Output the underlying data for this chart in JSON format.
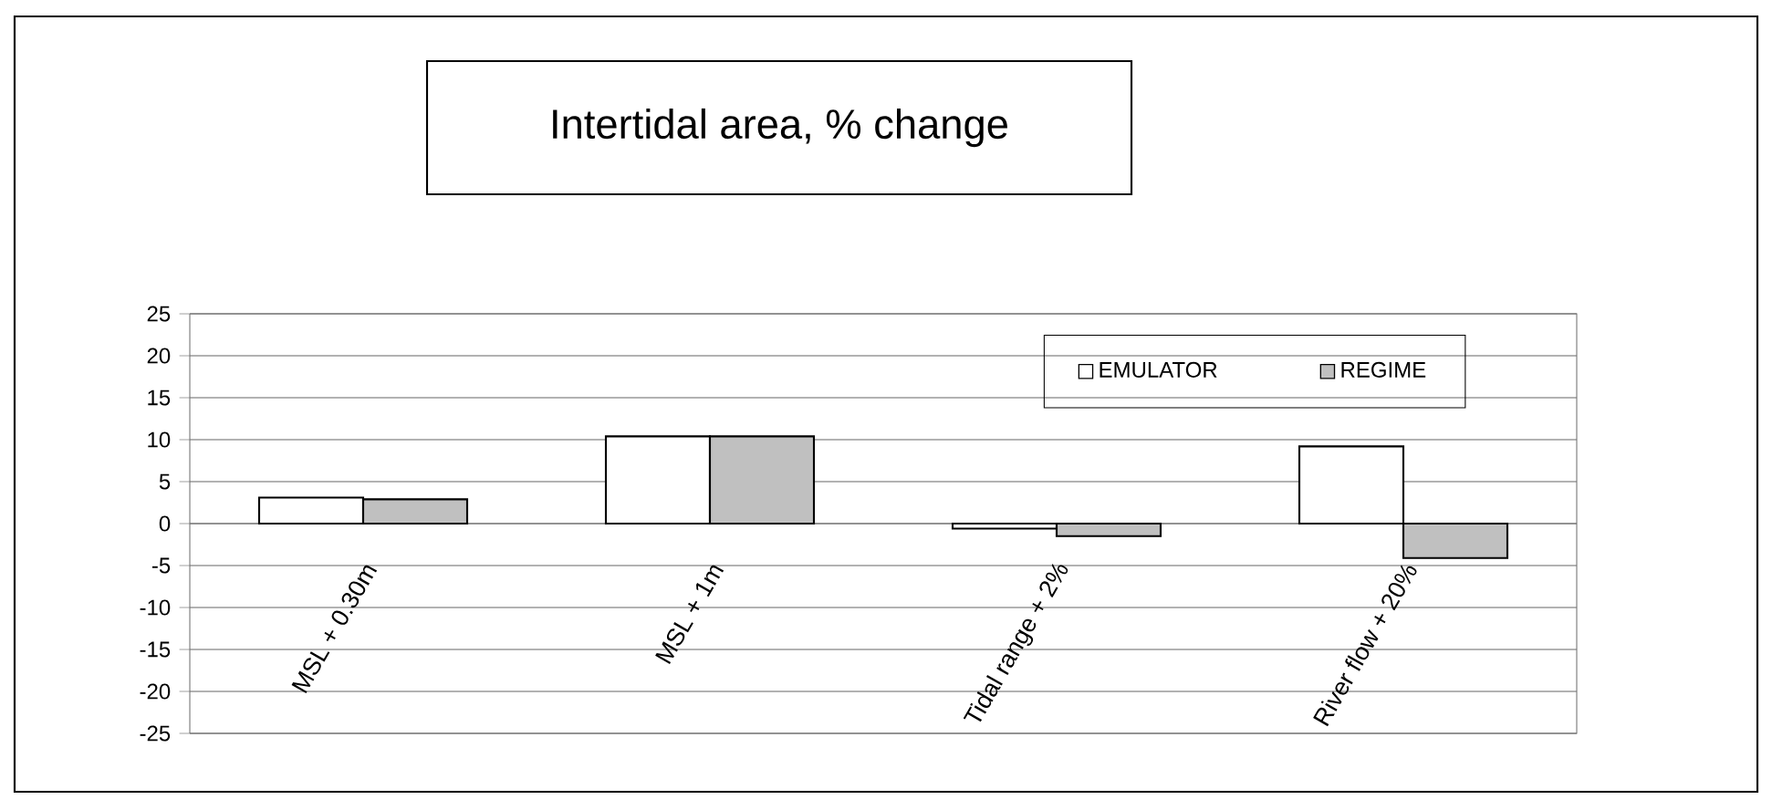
{
  "chart_data": {
    "type": "bar",
    "title": "Intertidal area, % change",
    "categories": [
      "MSL + 0.30m",
      "MSL + 1m",
      "Tidal range + 2%",
      "River flow + 20%"
    ],
    "series": [
      {
        "name": "EMULATOR",
        "color": "#ffffff",
        "values": [
          3.1,
          10.4,
          -0.6,
          9.2
        ]
      },
      {
        "name": "REGIME",
        "color": "#c0c0c0",
        "values": [
          2.9,
          10.4,
          -1.5,
          -4.1
        ]
      }
    ],
    "ylim": [
      -25,
      25
    ],
    "yticks": [
      -25,
      -20,
      -15,
      -10,
      -5,
      0,
      5,
      10,
      15,
      20,
      25
    ],
    "grid": "y",
    "legend": "top right"
  }
}
